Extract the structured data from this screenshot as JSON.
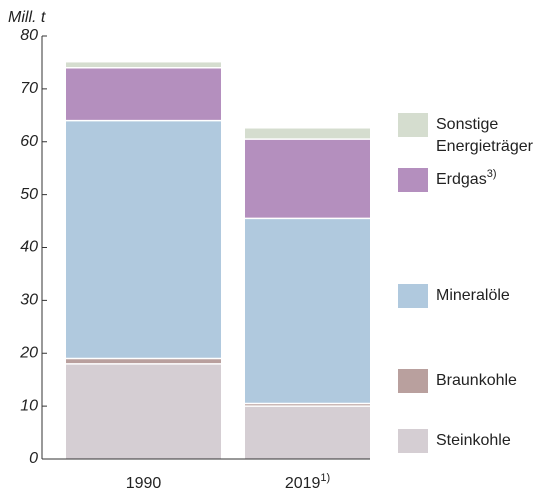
{
  "chart_data": {
    "type": "stacked-bar",
    "y_label": "Mill. t",
    "categories": [
      "1990",
      "2019"
    ],
    "category_notes": [
      null,
      "1)"
    ],
    "series": [
      {
        "name": "Steinkohle",
        "color": "#d5ced3",
        "values": [
          18,
          10
        ]
      },
      {
        "name": "Braunkohle",
        "color": "#b9a09e",
        "values": [
          1,
          0.5
        ]
      },
      {
        "name": "Mineralöle",
        "color": "#b0c9de",
        "values": [
          45,
          35
        ]
      },
      {
        "name": "Erdgas",
        "note": "3)",
        "color": "#b48fbe",
        "values": [
          10,
          15
        ]
      },
      {
        "name": "Sonstige Energieträger",
        "color": "#d5ddcf",
        "values": [
          1,
          2
        ]
      }
    ],
    "ylim": [
      0,
      80
    ],
    "yticks": [
      0,
      10,
      20,
      30,
      40,
      50,
      60,
      70,
      80
    ]
  }
}
